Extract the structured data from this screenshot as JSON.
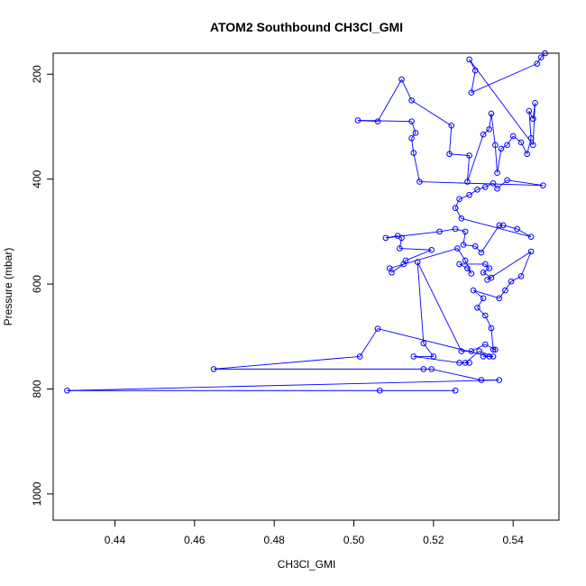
{
  "chart_data": {
    "type": "line",
    "title": "ATOM2 Southbound CH3Cl_GMI",
    "xlabel": "CH3Cl_GMI",
    "ylabel": "Pressure (mbar)",
    "xlim": [
      0.4245,
      0.5515
    ],
    "ylim": [
      1050,
      160
    ],
    "y_reversed": true,
    "grid": false,
    "legend": "none",
    "x_ticks": [
      0.44,
      0.46,
      0.48,
      0.5,
      0.52,
      0.54
    ],
    "x_tick_labels": [
      "0.44",
      "0.46",
      "0.48",
      "0.50",
      "0.52",
      "0.54"
    ],
    "y_ticks": [
      200,
      400,
      600,
      800,
      1000
    ],
    "y_tick_labels": [
      "200",
      "400",
      "600",
      "800",
      "1000"
    ],
    "series": [
      {
        "color": "#0000ff",
        "markers": "open-circle",
        "points": [
          [
            0.5255,
            803
          ],
          [
            0.5065,
            803
          ],
          [
            0.428,
            803
          ],
          [
            0.5365,
            783
          ],
          [
            0.532,
            783
          ],
          [
            0.5195,
            762
          ],
          [
            0.5175,
            762
          ],
          [
            0.4648,
            762
          ],
          [
            0.5015,
            738
          ],
          [
            0.506,
            685
          ],
          [
            0.534,
            738
          ],
          [
            0.5325,
            738
          ],
          [
            0.535,
            738
          ],
          [
            0.5315,
            728
          ],
          [
            0.528,
            750
          ],
          [
            0.529,
            750
          ],
          [
            0.5265,
            750
          ],
          [
            0.515,
            738
          ],
          [
            0.52,
            738
          ],
          [
            0.5175,
            713
          ],
          [
            0.516,
            558
          ],
          [
            0.527,
            728
          ],
          [
            0.5295,
            728
          ],
          [
            0.533,
            715
          ],
          [
            0.5355,
            725
          ],
          [
            0.535,
            725
          ],
          [
            0.5345,
            684
          ],
          [
            0.533,
            660
          ],
          [
            0.531,
            645
          ],
          [
            0.5325,
            627
          ],
          [
            0.53,
            612
          ],
          [
            0.5365,
            627
          ],
          [
            0.538,
            612
          ],
          [
            0.5395,
            595
          ],
          [
            0.542,
            585
          ],
          [
            0.5445,
            538
          ],
          [
            0.5335,
            592
          ],
          [
            0.5345,
            588
          ],
          [
            0.5325,
            578
          ],
          [
            0.534,
            570
          ],
          [
            0.533,
            562
          ],
          [
            0.5265,
            562
          ],
          [
            0.5285,
            570
          ],
          [
            0.5295,
            580
          ],
          [
            0.528,
            555
          ],
          [
            0.526,
            532
          ],
          [
            0.509,
            570
          ],
          [
            0.5095,
            578
          ],
          [
            0.5125,
            562
          ],
          [
            0.513,
            555
          ],
          [
            0.5195,
            535
          ],
          [
            0.5115,
            532
          ],
          [
            0.512,
            512
          ],
          [
            0.511,
            508
          ],
          [
            0.508,
            512
          ],
          [
            0.5215,
            500
          ],
          [
            0.5255,
            495
          ],
          [
            0.528,
            500
          ],
          [
            0.5275,
            525
          ],
          [
            0.5305,
            528
          ],
          [
            0.532,
            540
          ],
          [
            0.5365,
            488
          ],
          [
            0.5375,
            488
          ],
          [
            0.541,
            495
          ],
          [
            0.5445,
            510
          ],
          [
            0.527,
            475
          ],
          [
            0.5255,
            455
          ],
          [
            0.5265,
            438
          ],
          [
            0.529,
            430
          ],
          [
            0.531,
            420
          ],
          [
            0.533,
            415
          ],
          [
            0.535,
            408
          ],
          [
            0.536,
            418
          ],
          [
            0.5385,
            402
          ],
          [
            0.5475,
            412
          ],
          [
            0.5165,
            405
          ],
          [
            0.515,
            350
          ],
          [
            0.5145,
            322
          ],
          [
            0.5155,
            312
          ],
          [
            0.5145,
            290
          ],
          [
            0.501,
            288
          ],
          [
            0.506,
            290
          ],
          [
            0.512,
            210
          ],
          [
            0.5145,
            250
          ],
          [
            0.5245,
            298
          ],
          [
            0.524,
            352
          ],
          [
            0.529,
            355
          ],
          [
            0.5285,
            405
          ],
          [
            0.5325,
            315
          ],
          [
            0.534,
            305
          ],
          [
            0.5345,
            275
          ],
          [
            0.5355,
            335
          ],
          [
            0.536,
            388
          ],
          [
            0.537,
            342
          ],
          [
            0.5385,
            335
          ],
          [
            0.54,
            318
          ],
          [
            0.542,
            330
          ],
          [
            0.5435,
            352
          ],
          [
            0.5445,
            322
          ],
          [
            0.544,
            270
          ],
          [
            0.545,
            285
          ],
          [
            0.5455,
            255
          ],
          [
            0.545,
            335
          ],
          [
            0.529,
            172
          ],
          [
            0.5305,
            193
          ],
          [
            0.5295,
            235
          ],
          [
            0.546,
            180
          ],
          [
            0.547,
            168
          ],
          [
            0.548,
            160
          ]
        ]
      }
    ]
  }
}
